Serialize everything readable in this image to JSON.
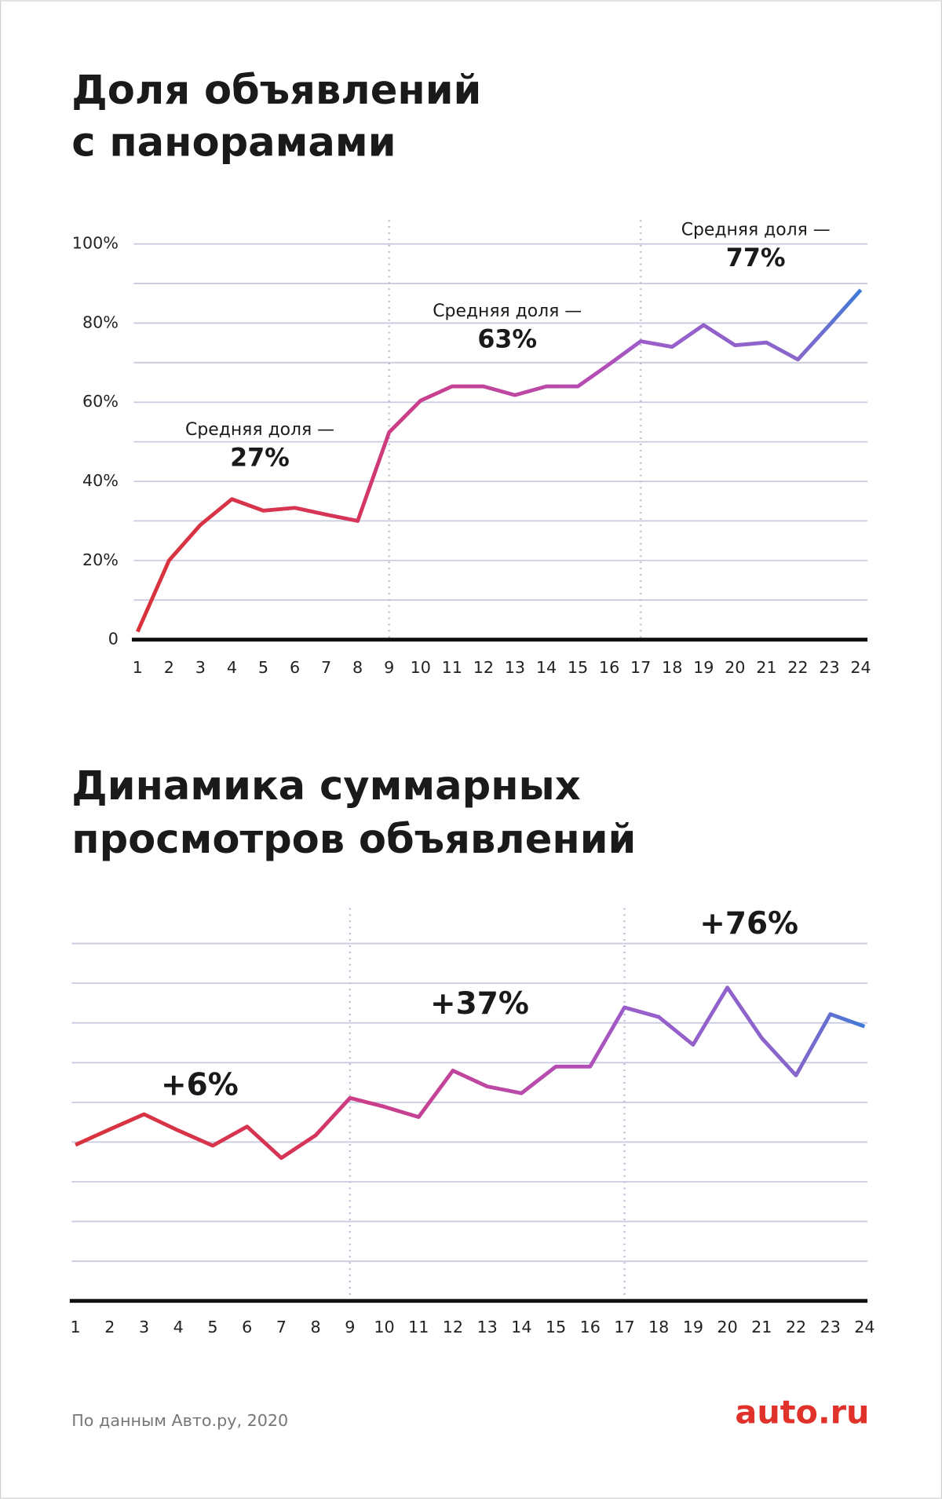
{
  "chart_data": [
    {
      "type": "line",
      "title": [
        "Доля объявлений",
        "с панорамами"
      ],
      "categories": [
        "1",
        "2",
        "3",
        "4",
        "5",
        "6",
        "7",
        "8",
        "9",
        "10",
        "11",
        "12",
        "13",
        "14",
        "15",
        "16",
        "17",
        "18",
        "19",
        "20",
        "21",
        "22",
        "23",
        "24"
      ],
      "series": [
        {
          "values": [
            2,
            20,
            29,
            35.5,
            32.6,
            33.3,
            31.6,
            30,
            52.4,
            60.4,
            64,
            64,
            61.8,
            64,
            64,
            69.6,
            75.4,
            74,
            79.5,
            74.4,
            75.1,
            70.8,
            79.5,
            88.4
          ]
        }
      ],
      "color_stops": [
        {
          "at": 1,
          "color": "#d8333b"
        },
        {
          "at": 8,
          "color": "#d6345a"
        },
        {
          "at": 9,
          "color": "#cc3d86"
        },
        {
          "at": 16,
          "color": "#b24fb8"
        },
        {
          "at": 17,
          "color": "#9b5ec9"
        },
        {
          "at": 22,
          "color": "#8866cc"
        },
        {
          "at": 24,
          "color": "#3e7cd6"
        }
      ],
      "ylim": [
        0,
        100
      ],
      "yticks": [
        0,
        {
          "value": 20,
          "label": "20%"
        },
        {
          "value": 40,
          "label": "40%"
        },
        {
          "value": 60,
          "label": "60%"
        },
        {
          "value": 80,
          "label": "80%"
        },
        {
          "value": 100,
          "label": "100%"
        }
      ],
      "minor_yticks": [
        10,
        30,
        50,
        70,
        90
      ],
      "dividers": [
        9,
        17
      ],
      "annotations": [
        {
          "text": "Средняя доля —",
          "value_label": "27%"
        },
        {
          "text": "Средняя доля —",
          "value_label": "63%"
        },
        {
          "text": "Средняя доля —",
          "value_label": "77%"
        }
      ]
    },
    {
      "type": "line",
      "title": [
        "Динамика суммарных",
        "просмотров объявлений"
      ],
      "categories": [
        "1",
        "2",
        "3",
        "4",
        "5",
        "6",
        "7",
        "8",
        "9",
        "10",
        "11",
        "12",
        "13",
        "14",
        "15",
        "16",
        "17",
        "18",
        "19",
        "20",
        "21",
        "22",
        "23",
        "24"
      ],
      "series": [
        {
          "values": [
            3.93,
            4.32,
            4.7,
            4.29,
            3.91,
            4.39,
            3.6,
            4.17,
            5.11,
            4.89,
            4.63,
            5.8,
            5.4,
            5.23,
            5.9,
            5.9,
            7.39,
            7.15,
            6.45,
            7.89,
            6.62,
            5.68,
            7.22,
            6.91
          ]
        }
      ],
      "color_stops": [
        {
          "at": 1,
          "color": "#d8333b"
        },
        {
          "at": 8,
          "color": "#d6345a"
        },
        {
          "at": 9,
          "color": "#cc3d86"
        },
        {
          "at": 16,
          "color": "#b24fb8"
        },
        {
          "at": 17,
          "color": "#9b5ec9"
        },
        {
          "at": 22,
          "color": "#8866cc"
        },
        {
          "at": 24,
          "color": "#3e7cd6"
        }
      ],
      "ylim": [
        0,
        9
      ],
      "minor_yticks": [
        1,
        2,
        3,
        4,
        5,
        6,
        7,
        8,
        9
      ],
      "dividers": [
        9,
        17
      ],
      "annotations": [
        {
          "value_label": "+6%"
        },
        {
          "value_label": "+37%"
        },
        {
          "value_label": "+76%"
        }
      ]
    }
  ],
  "source": "По данным Авто.ру, 2020",
  "logo": "auto.ru"
}
